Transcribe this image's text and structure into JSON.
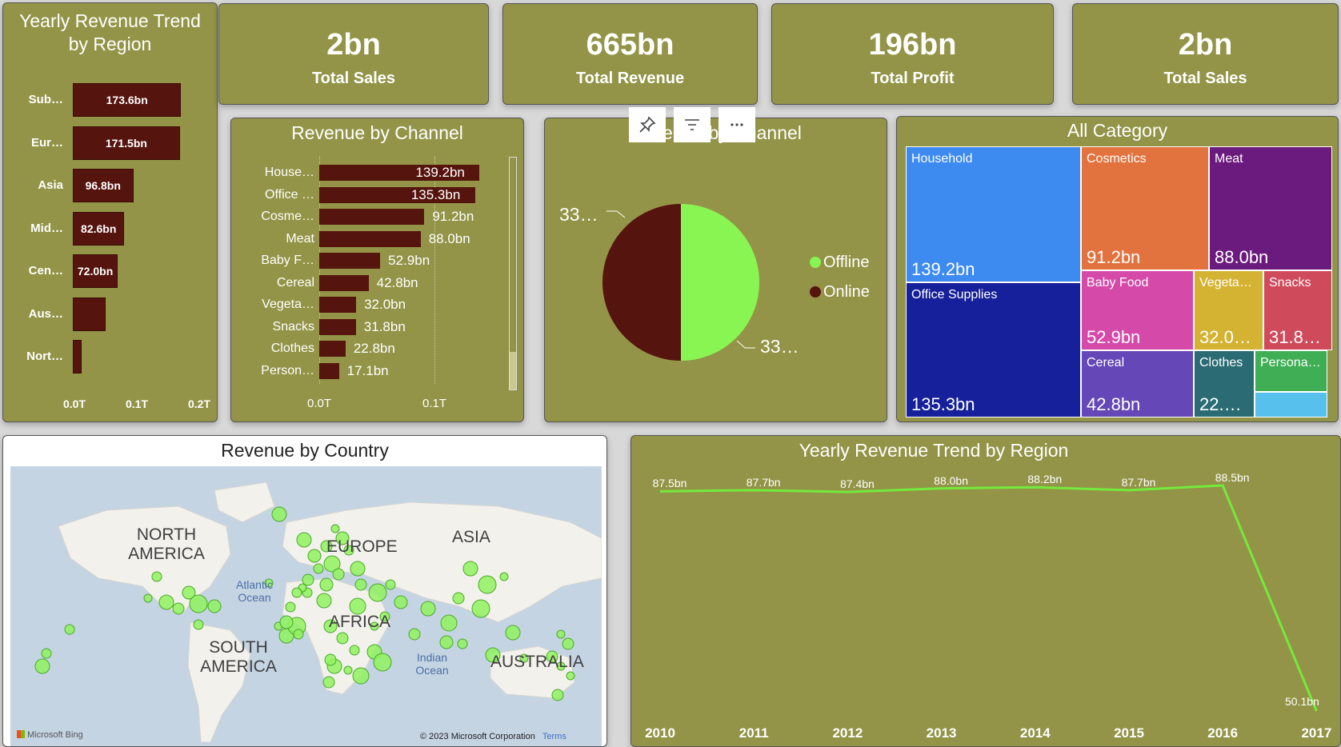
{
  "kpis": [
    {
      "value": "2bn",
      "label": "Total Sales"
    },
    {
      "value": "665bn",
      "label": "Total Revenue"
    },
    {
      "value": "196bn",
      "label": "Total Profit"
    },
    {
      "value": "2bn",
      "label": "Total Sales"
    }
  ],
  "region_bar": {
    "title_line1": "Yearly Revenue Trend",
    "title_line2": "by Region",
    "chart_data": {
      "type": "bar",
      "orientation": "horizontal",
      "categories": [
        "Sub…",
        "Eur…",
        "Asia",
        "Mid…",
        "Cen…",
        "Aus…",
        "Nort…"
      ],
      "values": [
        173.6,
        171.5,
        96.8,
        82.6,
        72.0,
        52,
        14
      ],
      "data_labels": [
        "173.6bn",
        "171.5bn",
        "96.8bn",
        "82.6bn",
        "72.0bn",
        "",
        ""
      ],
      "x_ticks": [
        "0.0T",
        "0.1T",
        "0.2T"
      ],
      "xlim": [
        0,
        200
      ],
      "unit": "bn"
    }
  },
  "channel_bar": {
    "title": "Revenue by Channel",
    "chart_data": {
      "type": "bar",
      "orientation": "horizontal",
      "categories": [
        "House…",
        "Office …",
        "Cosme…",
        "Meat",
        "Baby F…",
        "Cereal",
        "Vegeta…",
        "Snacks",
        "Clothes",
        "Person…"
      ],
      "values": [
        139.2,
        135.3,
        91.2,
        88.0,
        52.9,
        42.8,
        32.0,
        31.8,
        22.8,
        17.1
      ],
      "data_labels": [
        "139.2bn",
        "135.3bn",
        "91.2bn",
        "88.0bn",
        "52.9bn",
        "42.8bn",
        "32.0bn",
        "31.8bn",
        "22.8bn",
        "17.1bn"
      ],
      "x_ticks": [
        "0.0T",
        "0.1T"
      ],
      "xlim": [
        0,
        140
      ],
      "unit": "bn"
    }
  },
  "pie": {
    "title": "Revenue by Channel",
    "toolbar": [
      "pin-icon",
      "filter-icon",
      "more-options-icon"
    ],
    "chart_data": {
      "type": "pie",
      "labels": [
        "Offline",
        "Online"
      ],
      "values": [
        50,
        50
      ],
      "colors": [
        "#89f552",
        "#56140e"
      ],
      "data_labels": [
        "33…",
        "33…"
      ],
      "legend": "right"
    }
  },
  "treemap": {
    "title": "All Category",
    "tiles": [
      {
        "name": "Household",
        "value": "139.2bn",
        "color": "#3d8af0"
      },
      {
        "name": "Cosmetics",
        "value": "91.2bn",
        "color": "#e2733e"
      },
      {
        "name": "Meat",
        "value": "88.0bn",
        "color": "#6b1a7d"
      },
      {
        "name": "Office Supplies",
        "value": "135.3bn",
        "color": "#15209a"
      },
      {
        "name": "Baby Food",
        "value": "52.9bn",
        "color": "#d54aa8"
      },
      {
        "name": "Vegeta…",
        "value": "32.0…",
        "color": "#d4b232"
      },
      {
        "name": "Snacks",
        "value": "31.8…",
        "color": "#cf4b5c"
      },
      {
        "name": "Cereal",
        "value": "42.8bn",
        "color": "#6547b7"
      },
      {
        "name": "Clothes",
        "value": "22.…",
        "color": "#2a6b74"
      },
      {
        "name": "Persona…",
        "value": "",
        "color": "#3fae54"
      },
      {
        "name": "",
        "value": "",
        "color": "#58c0ec"
      }
    ]
  },
  "map": {
    "title": "Revenue by Country",
    "labels": {
      "north_america": "NORTH AMERICA",
      "europe": "EUROPE",
      "asia": "ASIA",
      "atlantic": "Atlantic Ocean",
      "south_america": "SOUTH AMERICA",
      "africa": "AFRICA",
      "indian": "Indian Ocean",
      "australia": "AUSTRALIA"
    },
    "footer_brand": "Microsoft Bing",
    "footer_copyright": "© 2023 Microsoft Corporation",
    "footer_terms": "Terms",
    "bubble_color": "#8ff25f"
  },
  "trend": {
    "title": "Yearly Revenue Trend by Region",
    "chart_data": {
      "type": "line",
      "x": [
        "2010",
        "2011",
        "2012",
        "2013",
        "2014",
        "2015",
        "2016",
        "2017"
      ],
      "values": [
        87.5,
        87.7,
        87.4,
        88.0,
        88.2,
        87.7,
        88.5,
        50.1
      ],
      "data_labels": [
        "87.5bn",
        "87.7bn",
        "87.4bn",
        "88.0bn",
        "88.2bn",
        "87.7bn",
        "88.5bn",
        "50.1bn"
      ],
      "line_color": "#74ea3c",
      "unit": "bn"
    }
  }
}
